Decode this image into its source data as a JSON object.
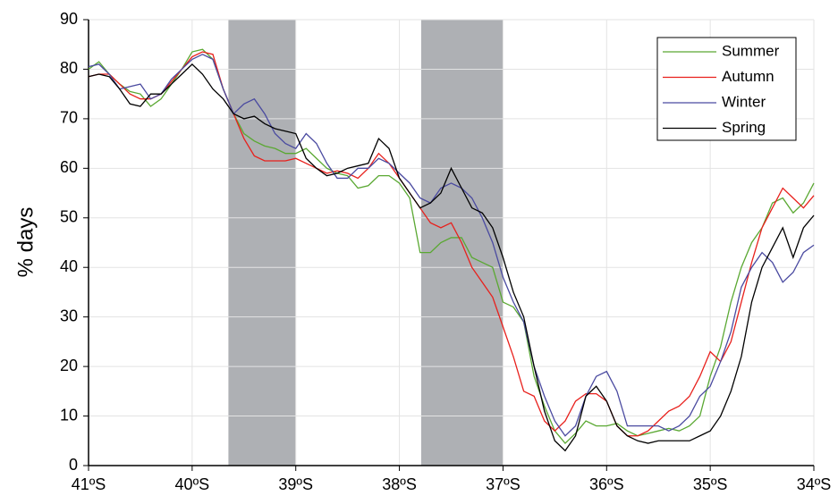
{
  "chart_data": {
    "type": "line",
    "y_label": "% days",
    "xlim": [
      -41,
      -34
    ],
    "ylim": [
      0,
      90
    ],
    "xticks": [
      {
        "value": -41,
        "label": "41ºS"
      },
      {
        "value": -40,
        "label": "40ºS"
      },
      {
        "value": -39,
        "label": "39ºS"
      },
      {
        "value": -38,
        "label": "38ºS"
      },
      {
        "value": -37,
        "label": "37ºS"
      },
      {
        "value": -36,
        "label": "36ºS"
      },
      {
        "value": -35,
        "label": "35ºS"
      },
      {
        "value": -34,
        "label": "34ºS"
      }
    ],
    "yticks": [
      0,
      10,
      20,
      30,
      40,
      50,
      60,
      70,
      80,
      90
    ],
    "grid": true,
    "legend": "upper right",
    "shaded_regions": [
      [
        -39.65,
        -39.0
      ],
      [
        -37.79,
        -37.0
      ]
    ],
    "shade_color": "#aeb0b4",
    "x": [
      -41,
      -40.9,
      -40.8,
      -40.7,
      -40.6,
      -40.5,
      -40.4,
      -40.3,
      -40.2,
      -40.1,
      -40,
      -39.9,
      -39.8,
      -39.7,
      -39.6,
      -39.5,
      -39.4,
      -39.3,
      -39.2,
      -39.1,
      -39,
      -38.9,
      -38.8,
      -38.7,
      -38.6,
      -38.5,
      -38.4,
      -38.3,
      -38.2,
      -38.1,
      -38,
      -37.9,
      -37.8,
      -37.7,
      -37.6,
      -37.5,
      -37.4,
      -37.3,
      -37.2,
      -37.1,
      -37,
      -36.9,
      -36.8,
      -36.7,
      -36.6,
      -36.5,
      -36.4,
      -36.3,
      -36.2,
      -36.1,
      -36,
      -35.9,
      -35.8,
      -35.7,
      -35.6,
      -35.5,
      -35.4,
      -35.3,
      -35.2,
      -35.1,
      -35,
      -34.9,
      -34.8,
      -34.7,
      -34.6,
      -34.5,
      -34.4,
      -34.3,
      -34.2,
      -34.1,
      -34
    ],
    "series": [
      {
        "name": "Summer",
        "color": "#5aa832",
        "values": [
          80,
          81.5,
          79,
          77,
          75.5,
          75,
          72.5,
          74,
          77,
          80,
          83.5,
          84,
          82,
          76,
          71,
          67,
          65.5,
          64.5,
          64,
          63,
          63,
          64,
          62,
          60,
          59,
          58.5,
          56,
          56.5,
          58.5,
          58.5,
          57,
          54,
          43,
          43,
          45,
          46,
          46,
          42,
          41,
          40,
          33,
          32,
          29,
          18,
          12,
          7,
          4.5,
          6.5,
          9,
          8,
          8,
          8.5,
          7,
          6,
          6.5,
          7,
          7.5,
          7,
          8,
          10,
          18,
          24,
          33,
          40,
          45,
          48,
          53,
          54,
          51,
          53,
          57
        ]
      },
      {
        "name": "Autumn",
        "color": "#e8201c",
        "values": [
          78.5,
          79,
          79,
          77,
          75,
          74,
          74,
          75,
          77.5,
          80,
          82.5,
          83.5,
          83,
          76,
          71,
          66,
          62.5,
          61.5,
          61.5,
          61.5,
          62,
          61,
          60,
          59,
          59.5,
          59,
          58,
          60,
          63,
          61,
          58,
          55,
          52,
          49,
          48,
          49,
          45,
          40,
          37,
          34,
          28,
          22,
          15,
          14,
          9,
          7,
          9,
          13,
          14.5,
          14.5,
          13,
          8,
          6,
          6,
          7,
          9,
          11,
          12,
          14,
          18,
          23,
          21,
          25,
          33,
          41,
          48,
          52,
          56,
          54,
          52,
          54.5
        ]
      },
      {
        "name": "Winter",
        "color": "#4a4aa0",
        "values": [
          80.5,
          81,
          79,
          76,
          76.5,
          77,
          74,
          75,
          78,
          80,
          82,
          83,
          82,
          76,
          71,
          73,
          74,
          71,
          67,
          65,
          64,
          67,
          65,
          61,
          58,
          58,
          60,
          60,
          62,
          61,
          59,
          57,
          54,
          53,
          56,
          57,
          56,
          54,
          50,
          45,
          38,
          33,
          29,
          20,
          14,
          9,
          6,
          8,
          14,
          18,
          19,
          15,
          8,
          8,
          8,
          8,
          7,
          8,
          10,
          14,
          16,
          21,
          27,
          36,
          40,
          43,
          41,
          37,
          39,
          43,
          44.5
        ]
      },
      {
        "name": "Spring",
        "color": "#000000",
        "values": [
          78.5,
          79,
          78.5,
          76,
          73,
          72.5,
          75,
          75,
          77,
          79,
          81,
          79,
          76,
          74,
          71,
          70,
          70.5,
          69,
          68,
          67.5,
          67,
          62,
          60,
          58.5,
          59,
          60,
          60.5,
          61,
          66,
          64,
          58,
          55,
          52,
          53,
          55,
          60,
          56,
          52,
          51,
          48,
          42,
          35,
          30,
          20,
          11,
          5,
          3,
          6,
          14,
          16,
          13,
          8,
          6,
          5,
          4.5,
          5,
          5,
          5,
          5,
          6,
          7,
          10,
          15,
          22,
          33,
          40,
          44,
          48,
          42,
          48,
          50.5
        ]
      }
    ]
  }
}
